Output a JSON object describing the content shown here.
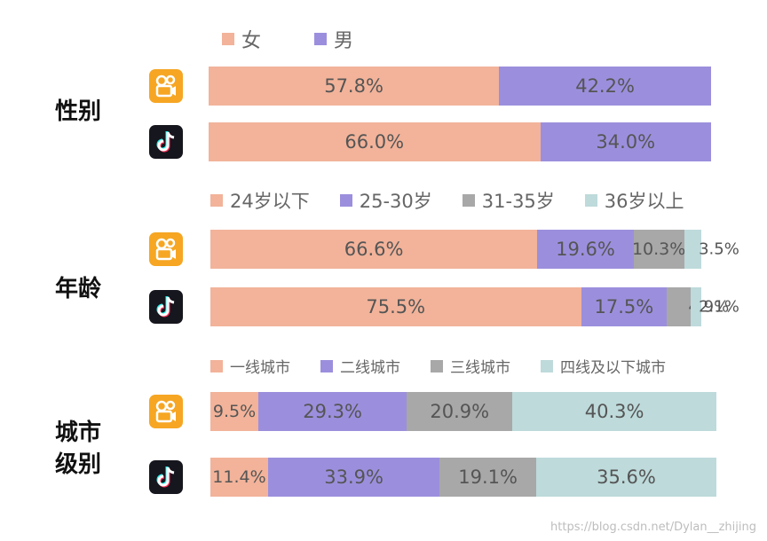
{
  "colors": {
    "c1": "#F2B39A",
    "c2": "#9B8FDD",
    "c3": "#A8A8A8",
    "c4": "#BEDADB",
    "kuaishou": "#F6A623",
    "douyin": "#16161E"
  },
  "icons": {
    "kuaishou": "kuaishou-icon",
    "douyin": "douyin-icon"
  },
  "watermark": "https://blog.csdn.net/Dylan__zhijing",
  "chart_data": [
    {
      "type": "bar",
      "orientation": "horizontal-stacked",
      "group_label": "性别",
      "legend": [
        "女",
        "男"
      ],
      "rows": [
        {
          "icon": "kuaishou-icon",
          "values": [
            57.8,
            42.2
          ],
          "labels": [
            "57.8%",
            "42.2%"
          ]
        },
        {
          "icon": "douyin-icon",
          "values": [
            66.0,
            34.0
          ],
          "labels": [
            "66.0%",
            "34.0%"
          ]
        }
      ]
    },
    {
      "type": "bar",
      "orientation": "horizontal-stacked",
      "group_label": "年龄",
      "legend": [
        "24岁以下",
        "25-30岁",
        "31-35岁",
        "36岁以上"
      ],
      "rows": [
        {
          "icon": "kuaishou-icon",
          "values": [
            66.6,
            19.6,
            10.3,
            3.5
          ],
          "labels": [
            "66.6%",
            "19.6%",
            "10.3%",
            "3.5%"
          ]
        },
        {
          "icon": "douyin-icon",
          "values": [
            75.5,
            17.5,
            4.9,
            2.1
          ],
          "labels": [
            "75.5%",
            "17.5%",
            "4.9%",
            "2.1%"
          ]
        }
      ]
    },
    {
      "type": "bar",
      "orientation": "horizontal-stacked",
      "group_label": "城市\n级别",
      "legend": [
        "一线城市",
        "二线城市",
        "三线城市",
        "四线及以下城市"
      ],
      "rows": [
        {
          "icon": "kuaishou-icon",
          "values": [
            9.5,
            29.3,
            20.9,
            40.3
          ],
          "labels": [
            "9.5%",
            "29.3%",
            "20.9%",
            "40.3%"
          ]
        },
        {
          "icon": "douyin-icon",
          "values": [
            11.4,
            33.9,
            19.1,
            35.6
          ],
          "labels": [
            "11.4%",
            "33.9%",
            "19.1%",
            "35.6%"
          ]
        }
      ]
    }
  ]
}
